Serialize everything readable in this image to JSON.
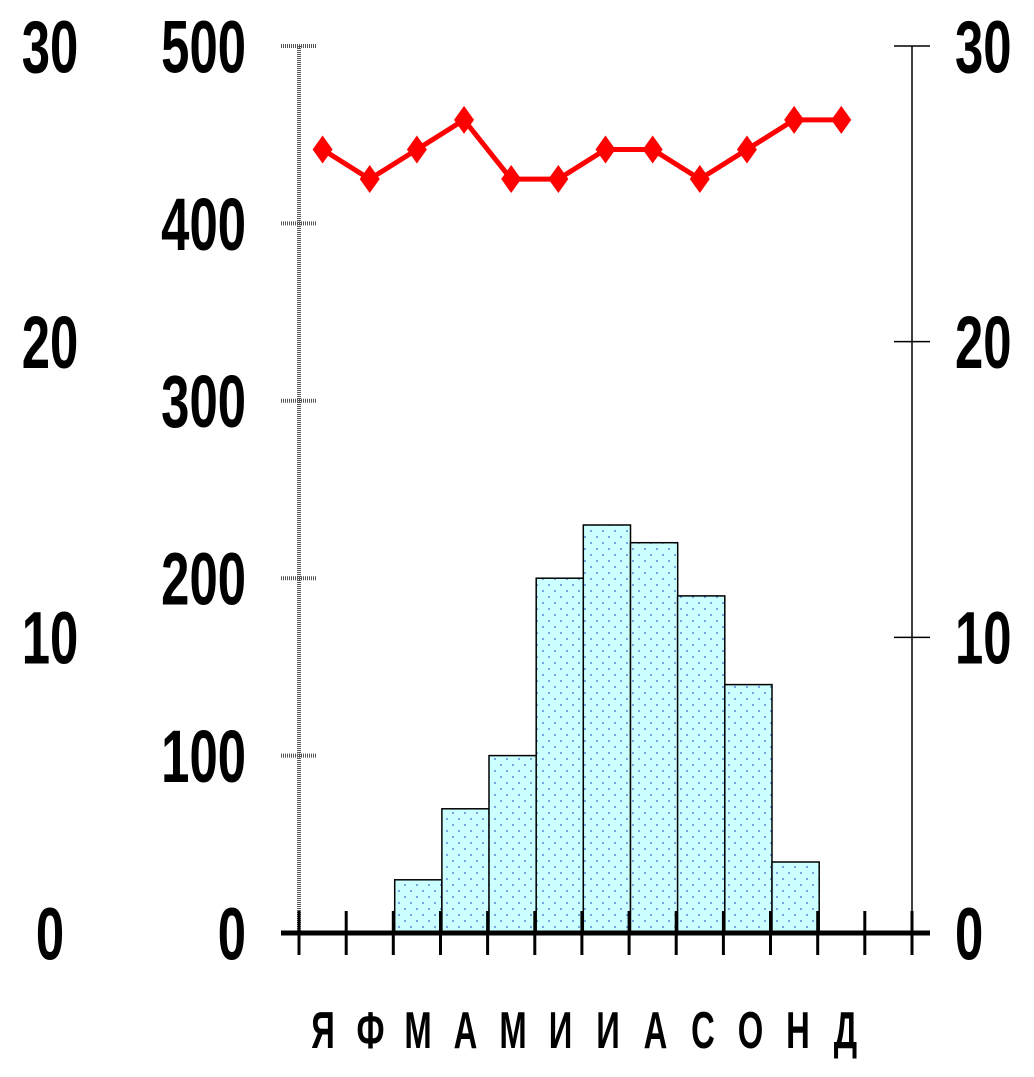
{
  "chart_data": {
    "type": "bar+line",
    "categories": [
      "Я",
      "Ф",
      "М",
      "А",
      "М",
      "И",
      "И",
      "А",
      "С",
      "О",
      "Н",
      "Д"
    ],
    "bar_values": [
      0,
      0,
      30,
      70,
      100,
      200,
      230,
      220,
      190,
      140,
      40,
      0
    ],
    "line_values": [
      26.5,
      25.5,
      26.5,
      27.5,
      25.5,
      25.5,
      26.5,
      26.5,
      25.5,
      26.5,
      27.5,
      27.5
    ],
    "left_outer_axis": {
      "ticks": [
        "0",
        "10",
        "20",
        "30"
      ],
      "range": [
        0,
        30
      ]
    },
    "left_inner_axis": {
      "ticks": [
        "0",
        "100",
        "200",
        "300",
        "400",
        "500"
      ],
      "range": [
        0,
        500
      ]
    },
    "right_axis": {
      "ticks": [
        "0",
        "10",
        "20",
        "30"
      ],
      "range": [
        0,
        30
      ]
    },
    "colors": {
      "bars": "#ccffff",
      "bar_dots": "#3366cc",
      "line": "#ff0000",
      "axis": "#000000"
    },
    "title": "",
    "xlabel": "",
    "ylabel": "",
    "grid": false,
    "legend": "none"
  }
}
